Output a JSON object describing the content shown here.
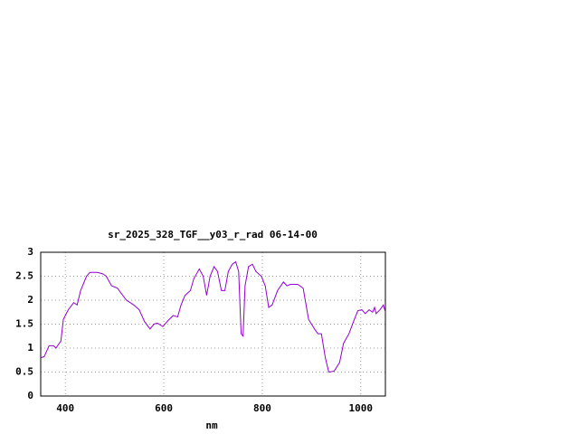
{
  "chart_data": {
    "type": "line",
    "title": "sr_2025_328_TGF__y03_r_rad 06-14-00",
    "x_label": "nm",
    "x": [
      350,
      357,
      367,
      376,
      381,
      391,
      396,
      406,
      417,
      424,
      431,
      443,
      450,
      465,
      476,
      483,
      494,
      506,
      513,
      524,
      539,
      550,
      561,
      572,
      580,
      587,
      598,
      609,
      619,
      628,
      635,
      643,
      654,
      661,
      672,
      680,
      687,
      694,
      702,
      709,
      717,
      724,
      731,
      739,
      746,
      752,
      757,
      761,
      765,
      772,
      780,
      787,
      798,
      806,
      813,
      820,
      831,
      843,
      850,
      857,
      872,
      883,
      894,
      906,
      913,
      920,
      928,
      935,
      946,
      957,
      965,
      976,
      987,
      994,
      1002,
      1009,
      1017,
      1024,
      1028,
      1031,
      1039,
      1046,
      1050
    ],
    "series": [
      {
        "name": "sr_2025_328_TGF__y03_r_rad",
        "color": "#9400d3",
        "values": [
          0.8,
          0.82,
          1.05,
          1.05,
          1.0,
          1.15,
          1.6,
          1.8,
          1.95,
          1.9,
          2.2,
          2.5,
          2.58,
          2.58,
          2.55,
          2.5,
          2.3,
          2.25,
          2.15,
          2.0,
          1.9,
          1.8,
          1.55,
          1.4,
          1.5,
          1.52,
          1.45,
          1.58,
          1.68,
          1.65,
          1.9,
          2.1,
          2.2,
          2.45,
          2.65,
          2.5,
          2.1,
          2.5,
          2.7,
          2.6,
          2.2,
          2.2,
          2.6,
          2.75,
          2.8,
          2.6,
          1.3,
          1.25,
          2.3,
          2.7,
          2.75,
          2.6,
          2.5,
          2.3,
          1.85,
          1.9,
          2.2,
          2.38,
          2.3,
          2.33,
          2.33,
          2.25,
          1.6,
          1.4,
          1.3,
          1.3,
          0.8,
          0.5,
          0.52,
          0.7,
          1.1,
          1.3,
          1.6,
          1.78,
          1.8,
          1.72,
          1.8,
          1.75,
          1.85,
          1.72,
          1.8,
          1.9,
          1.75
        ]
      }
    ],
    "xlim": [
      350,
      1050
    ],
    "xticks": [
      400,
      600,
      800,
      1000
    ],
    "ylim": [
      0,
      3
    ],
    "yticks": [
      0,
      0.5,
      1,
      1.5,
      2,
      2.5,
      3
    ],
    "grid": true
  }
}
